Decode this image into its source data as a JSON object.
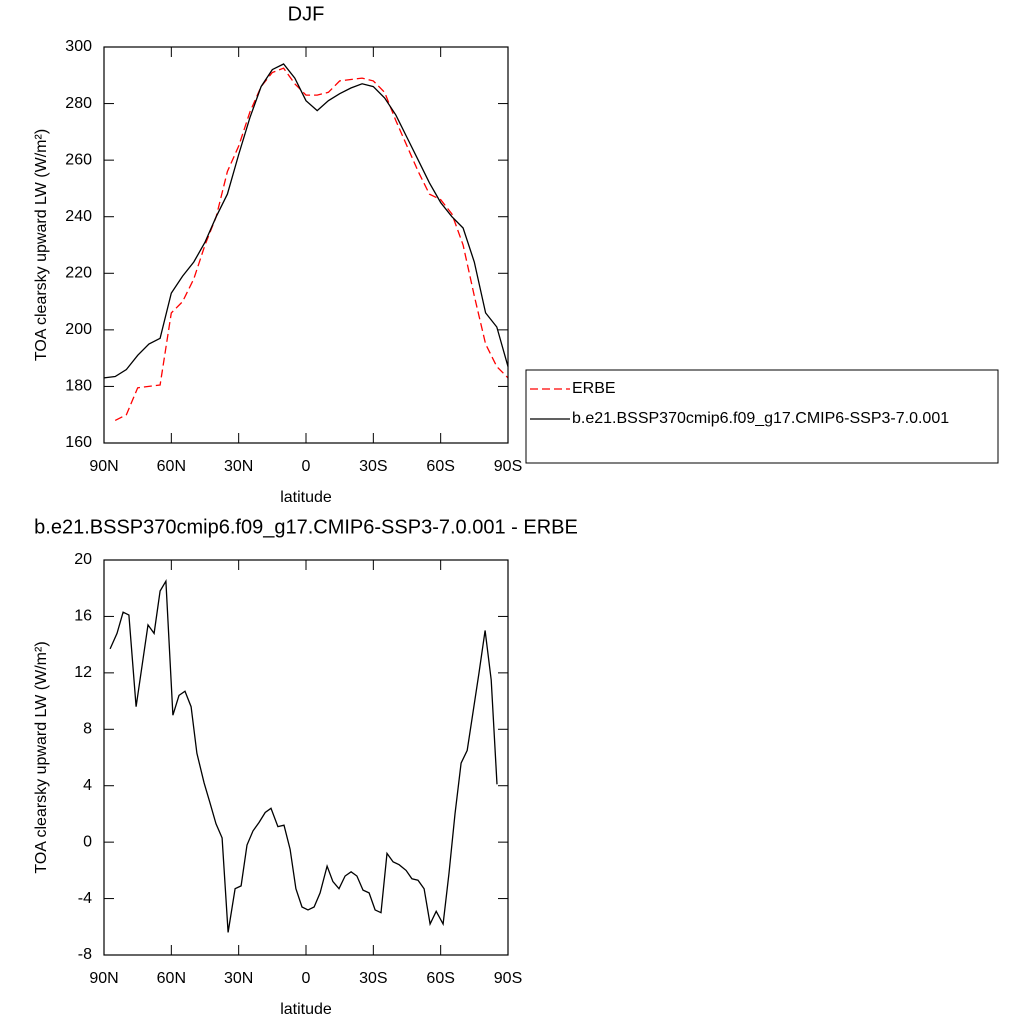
{
  "chart_data": [
    {
      "type": "line",
      "title": "DJF",
      "xlabel": "latitude",
      "ylabel": "TOA clearsky upward LW (W/m²)",
      "x": [
        90,
        85,
        80,
        75,
        70,
        65,
        60,
        55,
        50,
        45,
        40,
        35,
        30,
        25,
        20,
        15,
        10,
        5,
        0,
        -5,
        -10,
        -15,
        -20,
        -25,
        -30,
        -35,
        -40,
        -45,
        -50,
        -55,
        -60,
        -65,
        -70,
        -75,
        -80,
        -85,
        -90
      ],
      "series": [
        {
          "name": "ERBE",
          "color": "#ff0000",
          "linestyle": "dashed",
          "values": [
            null,
            168,
            170,
            179.5,
            180,
            180.5,
            206,
            210,
            218,
            230,
            240,
            256,
            265,
            277,
            286,
            291,
            292.5,
            287,
            283,
            283,
            284,
            288,
            288.5,
            289,
            288,
            284,
            274,
            265,
            256,
            248,
            246,
            241,
            230,
            212,
            195,
            187,
            183
          ]
        },
        {
          "name": "b.e21.BSSP370cmip6.f09_g17.CMIP6-SSP3-7.0.001",
          "color": "#000000",
          "linestyle": "solid",
          "values": [
            183,
            183.5,
            186,
            191,
            195,
            197,
            213,
            219,
            224,
            231,
            240,
            248,
            262,
            275,
            286,
            292,
            294,
            289,
            281,
            277.5,
            281,
            283.5,
            285.5,
            287,
            286,
            282,
            276,
            268,
            260,
            252,
            245,
            240,
            236,
            224,
            206,
            201,
            187
          ]
        }
      ],
      "xlim": [
        90,
        -90
      ],
      "xticks": [
        {
          "value": 90,
          "label": "90N"
        },
        {
          "value": 60,
          "label": "60N"
        },
        {
          "value": 30,
          "label": "30N"
        },
        0,
        {
          "value": -30,
          "label": "30S"
        },
        {
          "value": -60,
          "label": "60S"
        },
        {
          "value": -90,
          "label": "90S"
        }
      ],
      "ylim": [
        160,
        300
      ],
      "yticks": [
        160,
        180,
        200,
        220,
        240,
        260,
        280,
        300
      ],
      "legend": "right"
    },
    {
      "type": "line",
      "title": "b.e21.BSSP370cmip6.f09_g17.CMIP6-SSP3-7.0.001 - ERBE",
      "xlabel": "latitude",
      "ylabel": "TOA clearsky upward LW (W/m²)",
      "x": [
        87.3,
        84.2,
        81.5,
        78.9,
        75.7,
        70.4,
        67.7,
        65.0,
        62.4,
        59.3,
        56.6,
        53.9,
        51.2,
        48.6,
        45.4,
        42.8,
        40.1,
        37.4,
        34.7,
        31.6,
        28.9,
        26.3,
        23.6,
        20.9,
        18.2,
        15.6,
        12.5,
        9.8,
        7.1,
        4.5,
        1.8,
        -0.9,
        -3.6,
        -6.3,
        -9.4,
        -12.0,
        -14.7,
        -17.4,
        -20.1,
        -22.7,
        -25.4,
        -28.1,
        -30.8,
        -33.4,
        -36.1,
        -38.8,
        -41.5,
        -44.6,
        -47.2,
        -49.9,
        -52.6,
        -55.3,
        -58.0,
        -61.1,
        -63.7,
        -66.4,
        -69.1,
        -71.8,
        -74.4,
        -77.1,
        -79.8,
        -82.5,
        -85.1
      ],
      "values": [
        13.7,
        14.8,
        16.3,
        16.1,
        9.6,
        15.4,
        14.8,
        17.8,
        18.5,
        9.0,
        10.4,
        10.7,
        9.6,
        6.3,
        4.2,
        2.8,
        1.3,
        0.3,
        -6.4,
        -3.3,
        -3.1,
        -0.2,
        0.8,
        1.4,
        2.1,
        2.4,
        1.1,
        1.2,
        -0.5,
        -3.3,
        -4.6,
        -4.8,
        -4.6,
        -3.6,
        -1.7,
        -2.8,
        -3.3,
        -2.4,
        -2.1,
        -2.4,
        -3.4,
        -3.6,
        -4.8,
        -5.0,
        -0.8,
        -1.4,
        -1.6,
        -2.0,
        -2.6,
        -2.7,
        -3.3,
        -5.8,
        -4.9,
        -5.8,
        -2.2,
        2.0,
        5.6,
        6.5,
        9.2,
        12.0,
        15.0,
        11.5,
        4.1
      ],
      "color": "#000000",
      "xlim": [
        90,
        -90
      ],
      "xticks": [
        {
          "value": 90,
          "label": "90N"
        },
        {
          "value": 60,
          "label": "60N"
        },
        {
          "value": 30,
          "label": "30N"
        },
        0,
        {
          "value": -30,
          "label": "30S"
        },
        {
          "value": -60,
          "label": "60S"
        },
        {
          "value": -90,
          "label": "90S"
        }
      ],
      "ylim": [
        -8,
        20
      ],
      "yticks": [
        -8,
        -4,
        0,
        4,
        8,
        12,
        16,
        20
      ]
    }
  ]
}
